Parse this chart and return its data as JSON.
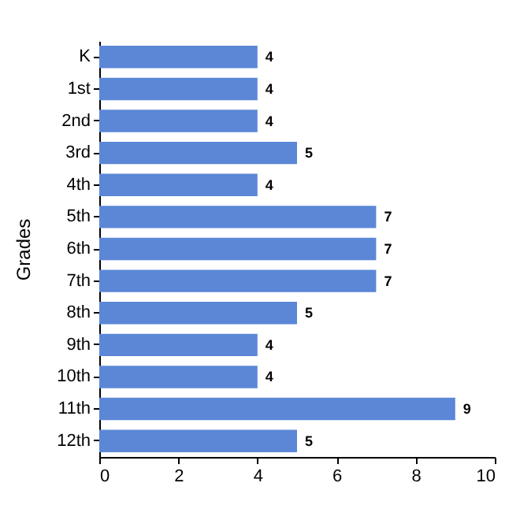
{
  "chart_data": {
    "type": "bar",
    "orientation": "horizontal",
    "ylabel": "Grades",
    "categories": [
      "K",
      "1st",
      "2nd",
      "3rd",
      "4th",
      "5th",
      "6th",
      "7th",
      "8th",
      "9th",
      "10th",
      "11th",
      "12th"
    ],
    "values": [
      4,
      4,
      4,
      5,
      4,
      7,
      7,
      7,
      5,
      4,
      4,
      9,
      5
    ],
    "color": "#5b87d6",
    "xlim": [
      0,
      10
    ],
    "xticks": [
      0,
      2,
      4,
      6,
      8,
      10
    ],
    "data_labels": true,
    "grid": false
  }
}
